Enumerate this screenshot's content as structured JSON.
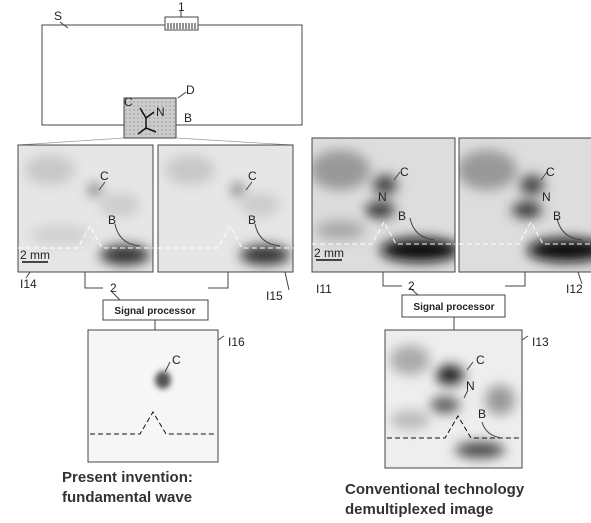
{
  "top": {
    "probe_label": "1",
    "sample_label": "S",
    "region_label": "D",
    "markers": [
      "C",
      "N",
      "B"
    ]
  },
  "left": {
    "images": [
      {
        "label": "I14",
        "scale": "2 mm",
        "markers": [
          "C",
          "B"
        ]
      },
      {
        "label": "I15",
        "markers": [
          "C",
          "B"
        ]
      }
    ],
    "processor": {
      "number": "2",
      "label": "Signal processor"
    },
    "output": {
      "label": "I16",
      "markers": [
        "C"
      ]
    },
    "caption": [
      "Present invention:",
      "fundamental wave"
    ]
  },
  "right": {
    "images": [
      {
        "label": "I11",
        "scale": "2 mm",
        "markers": [
          "C",
          "N",
          "B"
        ]
      },
      {
        "label": "I12",
        "markers": [
          "C",
          "N",
          "B"
        ]
      }
    ],
    "processor": {
      "number": "2",
      "label": "Signal processor"
    },
    "output": {
      "label": "I13",
      "markers": [
        "C",
        "N",
        "B"
      ]
    },
    "caption": [
      "Conventional technology",
      "demultiplexed image"
    ]
  }
}
